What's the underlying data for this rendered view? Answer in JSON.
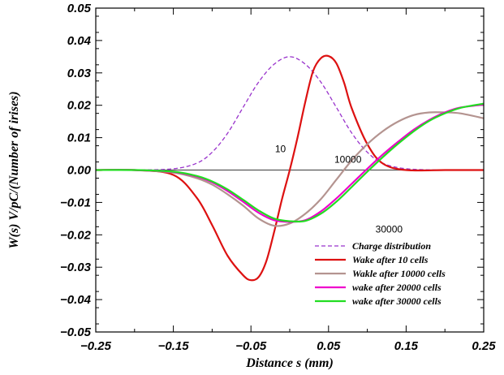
{
  "chart_data": {
    "type": "line",
    "xlabel": "Distance s (mm)",
    "ylabel": "W(s)  V/pC/(Number of irises)",
    "xlim": [
      -0.25,
      0.25
    ],
    "ylim": [
      -0.05,
      0.05
    ],
    "x_ticks": [
      "−0.25",
      "−0.15",
      "−0.05",
      "0.05",
      "0.15",
      "0.25"
    ],
    "y_ticks": [
      "−0.05",
      "−0.04",
      "−0.03",
      "−0.02",
      "−0.01",
      "0.00",
      "0.01",
      "0.02",
      "0.03",
      "0.04",
      "0.05"
    ],
    "grid": false,
    "legend_position": "bottom-right",
    "series": [
      {
        "name": "Charge distribution",
        "color": "#9933cc",
        "dash": true,
        "x": [
          -0.25,
          -0.2,
          -0.15,
          -0.12,
          -0.1,
          -0.08,
          -0.06,
          -0.04,
          -0.02,
          0.0,
          0.02,
          0.04,
          0.06,
          0.08,
          0.1,
          0.12,
          0.15,
          0.2,
          0.25
        ],
        "y": [
          0.0,
          0.0,
          0.0004,
          0.0021,
          0.0055,
          0.0114,
          0.0194,
          0.0272,
          0.0327,
          0.035,
          0.0327,
          0.0272,
          0.0194,
          0.0114,
          0.0055,
          0.0021,
          0.0004,
          0.0,
          0.0
        ]
      },
      {
        "name": "Wake after 10 cells",
        "color": "#dd1111",
        "x": [
          -0.25,
          -0.2,
          -0.15,
          -0.12,
          -0.1,
          -0.08,
          -0.06,
          -0.05,
          -0.04,
          -0.03,
          -0.02,
          -0.01,
          0.0,
          0.01,
          0.02,
          0.03,
          0.04,
          0.05,
          0.06,
          0.07,
          0.08,
          0.1,
          0.12,
          0.15,
          0.2,
          0.25
        ],
        "y": [
          0.0,
          0.0,
          -0.0015,
          -0.0085,
          -0.017,
          -0.0265,
          -0.0325,
          -0.034,
          -0.033,
          -0.028,
          -0.019,
          -0.009,
          0.0,
          0.01,
          0.021,
          0.0305,
          0.0345,
          0.0352,
          0.033,
          0.027,
          0.019,
          0.008,
          0.002,
          0.0,
          0.0,
          0.0
        ]
      },
      {
        "name": "Wakle after 10000 cells",
        "color": "#b49490",
        "x": [
          -0.25,
          -0.2,
          -0.15,
          -0.12,
          -0.1,
          -0.08,
          -0.06,
          -0.04,
          -0.02,
          0.0,
          0.02,
          0.04,
          0.06,
          0.08,
          0.1,
          0.12,
          0.14,
          0.16,
          0.18,
          0.2,
          0.22,
          0.25
        ],
        "y": [
          0.0,
          0.0,
          -0.0008,
          -0.0025,
          -0.0045,
          -0.0075,
          -0.011,
          -0.015,
          -0.0172,
          -0.0165,
          -0.0135,
          -0.009,
          -0.003,
          0.003,
          0.008,
          0.012,
          0.015,
          0.017,
          0.0178,
          0.0178,
          0.0175,
          0.016
        ]
      },
      {
        "name": "wake after 20000 cells",
        "color": "#ee00cc",
        "x": [
          -0.25,
          -0.2,
          -0.15,
          -0.12,
          -0.1,
          -0.08,
          -0.06,
          -0.04,
          -0.02,
          0.0,
          0.02,
          0.04,
          0.06,
          0.08,
          0.1,
          0.12,
          0.14,
          0.16,
          0.18,
          0.2,
          0.22,
          0.25
        ],
        "y": [
          0.0,
          0.0,
          -0.0006,
          -0.002,
          -0.0038,
          -0.0065,
          -0.0098,
          -0.0132,
          -0.0155,
          -0.016,
          -0.0155,
          -0.0128,
          -0.0088,
          -0.0042,
          0.0004,
          0.0048,
          0.0088,
          0.0125,
          0.0155,
          0.0178,
          0.0193,
          0.0202
        ]
      },
      {
        "name": "wake after 30000 cells",
        "color": "#22dd22",
        "x": [
          -0.25,
          -0.2,
          -0.15,
          -0.12,
          -0.1,
          -0.08,
          -0.06,
          -0.04,
          -0.02,
          0.0,
          0.02,
          0.04,
          0.06,
          0.08,
          0.1,
          0.12,
          0.14,
          0.16,
          0.18,
          0.2,
          0.22,
          0.25
        ],
        "y": [
          0.0,
          0.0,
          -0.0005,
          -0.0018,
          -0.0035,
          -0.006,
          -0.0092,
          -0.0125,
          -0.015,
          -0.0158,
          -0.0157,
          -0.0135,
          -0.0098,
          -0.0052,
          -0.0005,
          0.004,
          0.0082,
          0.012,
          0.0152,
          0.0175,
          0.0192,
          0.0205
        ]
      }
    ],
    "annotations": [
      {
        "text": "10",
        "x": -0.012,
        "y": 0.0055
      },
      {
        "text": "10000",
        "x": 0.075,
        "y": 0.0022
      },
      {
        "text": "30000",
        "x": 0.128,
        "y": -0.0193
      }
    ]
  }
}
